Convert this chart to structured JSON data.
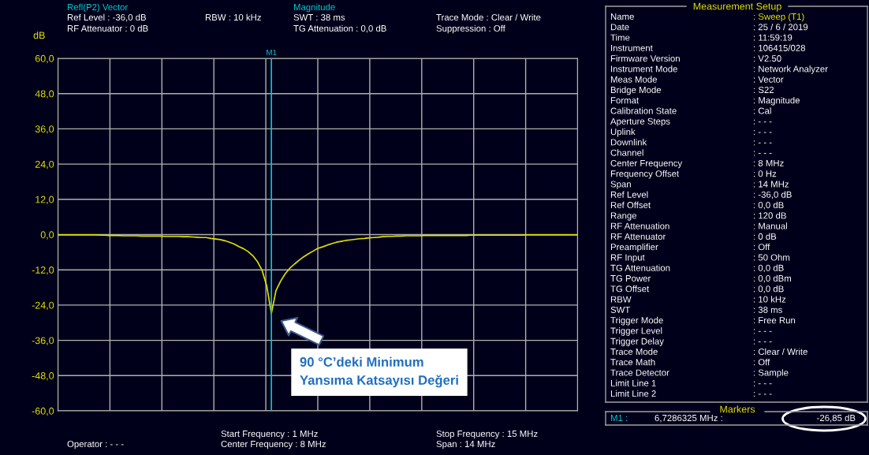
{
  "chart_data": {
    "type": "line",
    "ylabel": "dB",
    "categories": [
      null,
      null,
      null,
      null,
      null,
      null,
      null,
      null,
      null,
      null,
      null,
      null,
      null,
      null,
      null,
      null,
      null,
      null,
      null,
      null,
      null,
      null,
      null,
      null,
      null,
      null,
      null,
      null,
      null,
      null,
      null,
      null,
      null,
      null,
      null,
      null,
      null,
      null,
      null,
      null,
      null,
      null,
      null,
      null,
      null,
      null,
      null,
      null,
      null,
      null,
      null,
      null,
      null,
      null,
      null,
      null,
      null,
      null,
      null,
      null,
      null,
      null,
      null,
      null,
      null,
      null,
      null,
      null,
      null,
      null,
      null,
      null,
      null,
      null,
      null,
      null,
      null,
      null,
      null,
      null,
      null,
      null,
      null,
      null,
      null,
      null,
      null,
      null,
      null,
      null,
      null,
      null,
      null,
      null,
      null,
      null,
      null,
      null,
      null,
      null,
      null,
      null,
      null,
      null,
      null,
      null,
      null,
      null,
      null,
      null,
      null,
      null,
      null
    ],
    "series": [
      {
        "color": "#e0e000",
        "values": [
          -0.1,
          -0.1,
          -0.1,
          -0.1,
          -0.1,
          -0.1,
          -0.1,
          -0.1,
          -0.1,
          -0.2,
          -0.2,
          -0.3,
          -0.3,
          -0.3,
          -0.4,
          -0.4,
          -0.4,
          -0.4,
          -0.5,
          -0.5,
          -0.5,
          -0.5,
          -0.5,
          -0.6,
          -0.6,
          -0.6,
          -0.6,
          -0.7,
          -0.7,
          -0.8,
          -0.9,
          -1.0,
          -1.0,
          -1.3,
          -1.5,
          -1.7,
          -2.1,
          -2.6,
          -3.2,
          -4.1,
          -4.8,
          -5.8,
          -7.2,
          -9.2,
          -12.2,
          -17.5,
          -26.9,
          -19.0,
          -15.8,
          -13.3,
          -11.4,
          -10.0,
          -8.7,
          -7.5,
          -6.5,
          -5.6,
          -4.7,
          -4.2,
          -3.6,
          -3.1,
          -2.6,
          -2.3,
          -2.0,
          -1.8,
          -1.6,
          -1.4,
          -1.3,
          -1.1,
          -1.0,
          -0.9,
          -0.7,
          -0.6,
          -0.6,
          -0.5,
          -0.5,
          -0.4,
          -0.4,
          -0.4,
          -0.4,
          -0.3,
          -0.3,
          -0.3,
          -0.3,
          -0.3,
          -0.3,
          -0.3,
          -0.3,
          -0.3,
          -0.3,
          -0.2,
          -0.2,
          -0.2,
          -0.2,
          -0.2,
          -0.2,
          -0.2,
          -0.2,
          -0.2,
          -0.2,
          -0.2,
          -0.2,
          -0.1,
          -0.1,
          -0.1,
          -0.1,
          -0.1,
          -0.1,
          -0.1,
          -0.1,
          -0.1,
          -0.1,
          -0.1,
          -0.1
        ]
      }
    ],
    "ylim": [
      -60,
      60
    ],
    "yticks": [
      {
        "value": -60,
        "label": "-60,0"
      },
      {
        "value": -48,
        "label": "-48,0"
      },
      {
        "value": -36,
        "label": "-36,0"
      },
      {
        "value": -24,
        "label": "-24,0"
      },
      {
        "value": -12,
        "label": "-12,0"
      },
      {
        "value": 0,
        "label": "0,0"
      },
      {
        "value": 12,
        "label": "12,0"
      },
      {
        "value": 24,
        "label": "24,0"
      },
      {
        "value": 36,
        "label": "36,0"
      },
      {
        "value": 48,
        "label": "48,0"
      },
      {
        "value": 60,
        "label": "60,0"
      }
    ],
    "tick_labels": "y",
    "grid": true,
    "marker": "none",
    "line_style": "solid",
    "ref_lines": [
      {
        "axis": "x",
        "label": "M1",
        "color": "#00c8d0"
      }
    ],
    "annotations": [
      "Refl(P2) Vector",
      "Ref Level : -36,0 dB",
      "RF Attenuator : 0 dB",
      "RBW : 10 kHz",
      "Magnitude",
      "SWT : 38 ms",
      "TG Attenuation : 0,0 dB",
      "Trace Mode : Clear / Write",
      "Suppression : Off",
      "Start Frequency : 1 MHz",
      "Center Frequency : 8 MHz",
      "Stop Frequency : 15 MHz",
      "Span : 14 MHz",
      "Operator : - - -",
      "90 °C’deki Minimum\nYansıma Katsayısı Değeri",
      "Measurement Setup",
      "Name : Sweep (T1)",
      "Date : 25 / 6 / 2019",
      "Time : 11:59:19",
      "Instrument : 106415/028",
      "Firmware Version : V2.50",
      "Instrument Mode : Network Analyzer",
      "Meas Mode : Vector",
      "Bridge Mode : S22",
      "Format : Magnitude",
      "Calibration State : Cal",
      "Aperture Steps : - - -",
      "Uplink : - - -",
      "Downlink : - - -",
      "Channel : - - -",
      "Center Frequency : 8 MHz",
      "Frequency Offset : 0 Hz",
      "Span : 14 MHz",
      "Ref Level : -36,0 dB",
      "Ref Offset : 0,0 dB",
      "Range : 120 dB",
      "RF Attenuation : Manual",
      "RF Attenuator : 0 dB",
      "Preamplifier : Off",
      "RF Input : 50 Ohm",
      "TG Attenuation : 0,0 dB",
      "TG Power : 0,0 dBm",
      "TG Offset : 0,0 dB",
      "RBW : 10 kHz",
      "SWT : 38 ms",
      "Trigger Mode : Free Run",
      "Trigger Level : - - -",
      "Trigger Delay : - - -",
      "Trace Mode : Clear / Write",
      "Trace Math : Off",
      "Trace Detector : Sample",
      "Limit Line 1 : - - -",
      "Limit Line 2 : - - -",
      "Markers",
      "M1 : 6,7286325 MHz : -26,85 dB"
    ]
  }
}
